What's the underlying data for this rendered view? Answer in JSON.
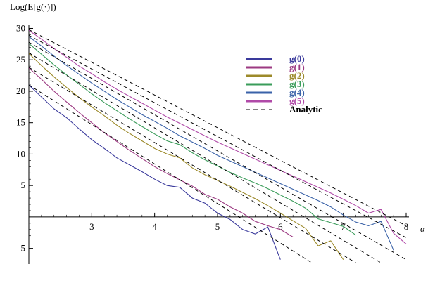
{
  "chart_data": {
    "type": "line",
    "ylabel": "Log(E[g(·)])",
    "xlabel": "α",
    "xlim": [
      2.0,
      8.0
    ],
    "ylim": [
      -7.5,
      30.5
    ],
    "x_ticks": [
      3,
      4,
      5,
      6,
      7,
      8
    ],
    "y_ticks": [
      -5,
      5,
      10,
      15,
      20,
      25,
      30
    ],
    "legend_position": "upper-right",
    "series": [
      {
        "name": "g(0)",
        "color": "#3a3a9c",
        "points": [
          [
            2.0,
            21.0
          ],
          [
            2.2,
            19.1
          ],
          [
            2.4,
            17.2
          ],
          [
            2.6,
            15.8
          ],
          [
            2.8,
            14.0
          ],
          [
            3.0,
            12.3
          ],
          [
            3.2,
            10.9
          ],
          [
            3.4,
            9.4
          ],
          [
            3.6,
            8.3
          ],
          [
            3.8,
            7.2
          ],
          [
            4.0,
            6.0
          ],
          [
            4.2,
            5.0
          ],
          [
            4.4,
            4.7
          ],
          [
            4.6,
            3.0
          ],
          [
            4.8,
            2.2
          ],
          [
            5.0,
            0.6
          ],
          [
            5.2,
            -0.4
          ],
          [
            5.4,
            -2.0
          ],
          [
            5.6,
            -2.7
          ],
          [
            5.8,
            -1.6
          ],
          [
            6.0,
            -6.8
          ]
        ]
      },
      {
        "name": "g(1)",
        "color": "#9c3a82",
        "points": [
          [
            2.0,
            23.7
          ],
          [
            2.2,
            21.9
          ],
          [
            2.4,
            20.0
          ],
          [
            2.6,
            18.3
          ],
          [
            2.8,
            16.6
          ],
          [
            3.0,
            15.0
          ],
          [
            3.2,
            13.4
          ],
          [
            3.4,
            12.0
          ],
          [
            3.6,
            10.6
          ],
          [
            3.8,
            9.3
          ],
          [
            4.0,
            8.0
          ],
          [
            4.2,
            6.9
          ],
          [
            4.4,
            5.9
          ],
          [
            4.6,
            4.9
          ],
          [
            4.8,
            3.6
          ],
          [
            5.0,
            2.8
          ],
          [
            5.2,
            1.6
          ],
          [
            5.4,
            0.6
          ],
          [
            5.6,
            -0.7
          ],
          [
            5.8,
            -1.4
          ],
          [
            6.0,
            -2.0
          ],
          [
            6.2,
            -3.2
          ]
        ]
      },
      {
        "name": "g(2)",
        "color": "#9c8a2a",
        "points": [
          [
            2.0,
            26.0
          ],
          [
            2.2,
            24.1
          ],
          [
            2.4,
            22.3
          ],
          [
            2.6,
            20.6
          ],
          [
            2.8,
            19.0
          ],
          [
            3.0,
            17.5
          ],
          [
            3.2,
            16.1
          ],
          [
            3.4,
            14.6
          ],
          [
            3.6,
            13.3
          ],
          [
            3.8,
            12.1
          ],
          [
            4.0,
            10.9
          ],
          [
            4.2,
            10.0
          ],
          [
            4.4,
            9.4
          ],
          [
            4.6,
            7.8
          ],
          [
            4.8,
            6.7
          ],
          [
            5.0,
            5.8
          ],
          [
            5.2,
            4.9
          ],
          [
            5.4,
            3.9
          ],
          [
            5.6,
            2.9
          ],
          [
            5.8,
            1.8
          ],
          [
            6.0,
            0.6
          ],
          [
            6.2,
            -0.6
          ],
          [
            6.4,
            -1.8
          ],
          [
            6.6,
            -4.6
          ],
          [
            6.8,
            -3.8
          ],
          [
            7.0,
            -6.8
          ]
        ]
      },
      {
        "name": "g(3)",
        "color": "#3a9c5a",
        "points": [
          [
            2.0,
            27.6
          ],
          [
            2.2,
            25.9
          ],
          [
            2.4,
            24.2
          ],
          [
            2.6,
            22.6
          ],
          [
            2.8,
            21.1
          ],
          [
            3.0,
            19.6
          ],
          [
            3.2,
            18.2
          ],
          [
            3.4,
            16.9
          ],
          [
            3.6,
            15.6
          ],
          [
            3.8,
            14.4
          ],
          [
            4.0,
            13.2
          ],
          [
            4.2,
            12.1
          ],
          [
            4.4,
            11.5
          ],
          [
            4.6,
            10.2
          ],
          [
            4.8,
            9.1
          ],
          [
            5.0,
            8.1
          ],
          [
            5.2,
            7.1
          ],
          [
            5.4,
            6.2
          ],
          [
            5.6,
            5.4
          ],
          [
            5.8,
            4.5
          ],
          [
            6.0,
            3.5
          ],
          [
            6.2,
            2.5
          ],
          [
            6.4,
            1.4
          ],
          [
            6.6,
            -0.3
          ],
          [
            6.8,
            -0.9
          ],
          [
            7.0,
            -1.5
          ],
          [
            7.2,
            -2.9
          ]
        ]
      },
      {
        "name": "g(4)",
        "color": "#3a62a8",
        "points": [
          [
            2.0,
            28.7
          ],
          [
            2.2,
            27.2
          ],
          [
            2.4,
            25.6
          ],
          [
            2.6,
            24.1
          ],
          [
            2.8,
            22.7
          ],
          [
            3.0,
            21.3
          ],
          [
            3.2,
            20.0
          ],
          [
            3.4,
            18.7
          ],
          [
            3.6,
            17.5
          ],
          [
            3.8,
            16.3
          ],
          [
            4.0,
            15.2
          ],
          [
            4.2,
            14.1
          ],
          [
            4.4,
            12.9
          ],
          [
            4.6,
            11.9
          ],
          [
            4.8,
            10.9
          ],
          [
            5.0,
            9.8
          ],
          [
            5.2,
            8.9
          ],
          [
            5.4,
            8.0
          ],
          [
            5.6,
            7.1
          ],
          [
            5.8,
            6.2
          ],
          [
            6.0,
            5.3
          ],
          [
            6.2,
            4.4
          ],
          [
            6.4,
            3.5
          ],
          [
            6.6,
            2.6
          ],
          [
            6.8,
            1.6
          ],
          [
            7.0,
            0.3
          ],
          [
            7.2,
            -0.8
          ],
          [
            7.4,
            -1.4
          ],
          [
            7.6,
            -0.7
          ],
          [
            7.8,
            -5.3
          ]
        ]
      },
      {
        "name": "g(5)",
        "color": "#b04aa8",
        "points": [
          [
            2.0,
            29.7
          ],
          [
            2.2,
            28.3
          ],
          [
            2.4,
            26.8
          ],
          [
            2.6,
            25.4
          ],
          [
            2.8,
            24.0
          ],
          [
            3.0,
            22.8
          ],
          [
            3.2,
            21.5
          ],
          [
            3.4,
            20.3
          ],
          [
            3.6,
            19.2
          ],
          [
            3.8,
            18.1
          ],
          [
            4.0,
            17.0
          ],
          [
            4.2,
            15.9
          ],
          [
            4.4,
            14.9
          ],
          [
            4.6,
            13.9
          ],
          [
            4.8,
            12.9
          ],
          [
            5.0,
            11.9
          ],
          [
            5.2,
            11.0
          ],
          [
            5.4,
            10.1
          ],
          [
            5.6,
            9.2
          ],
          [
            5.8,
            8.3
          ],
          [
            6.0,
            7.4
          ],
          [
            6.2,
            6.5
          ],
          [
            6.4,
            5.6
          ],
          [
            6.6,
            4.7
          ],
          [
            6.8,
            3.8
          ],
          [
            7.0,
            2.8
          ],
          [
            7.2,
            1.8
          ],
          [
            7.4,
            0.6
          ],
          [
            7.6,
            1.2
          ],
          [
            7.8,
            -2.6
          ],
          [
            8.0,
            -4.3
          ]
        ]
      },
      {
        "name": "Analytic",
        "color": "#000000",
        "dashed": true,
        "lines": [
          [
            [
              2.0,
              21.0
            ],
            [
              6.5,
              -7.3
            ]
          ],
          [
            [
              2.0,
              23.8
            ],
            [
              7.2,
              -7.3
            ]
          ],
          [
            [
              2.0,
              26.1
            ],
            [
              7.6,
              -7.3
            ]
          ],
          [
            [
              2.0,
              27.8
            ],
            [
              8.0,
              -6.8
            ]
          ],
          [
            [
              2.0,
              28.9
            ],
            [
              8.0,
              -3.3
            ]
          ],
          [
            [
              2.0,
              29.8
            ],
            [
              8.0,
              -1.4
            ]
          ]
        ]
      }
    ]
  }
}
